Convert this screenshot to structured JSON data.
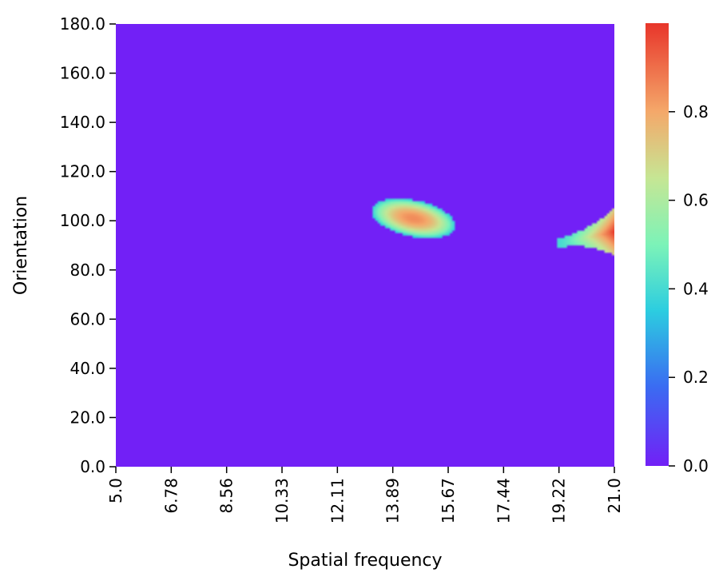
{
  "chart_data": {
    "type": "heatmap",
    "title": "",
    "xlabel": "Spatial frequency",
    "ylabel": "Orientation",
    "x_ticks": [
      "5.0",
      "6.78",
      "8.56",
      "10.33",
      "12.11",
      "13.89",
      "15.67",
      "17.44",
      "19.22",
      "21.0"
    ],
    "y_ticks": [
      "0.0",
      "20.0",
      "40.0",
      "60.0",
      "80.0",
      "100.0",
      "120.0",
      "140.0",
      "160.0",
      "180.0"
    ],
    "xlim": [
      5.0,
      21.0
    ],
    "ylim": [
      0.0,
      180.0
    ],
    "colormap": "rainbow",
    "colormap_stops": [
      "#8000ff",
      "#2adddd",
      "#d4dd80",
      "#ff0000"
    ],
    "colorbar": {
      "range": [
        0.0,
        1.0
      ],
      "ticks": [
        "0.0",
        "0.2",
        "0.4",
        "0.6",
        "0.8"
      ]
    },
    "background_value": 0.0,
    "peaks": [
      {
        "x": 14.6,
        "y": 101,
        "value": 0.85,
        "note": "broad blob spanning ~13.0–15.8 x, ~93–108 y"
      },
      {
        "x": 21.0,
        "y": 95,
        "value": 1.0,
        "note": "edge hotspot spanning ~19.2–21.0 x, ~87–104 y"
      }
    ]
  }
}
